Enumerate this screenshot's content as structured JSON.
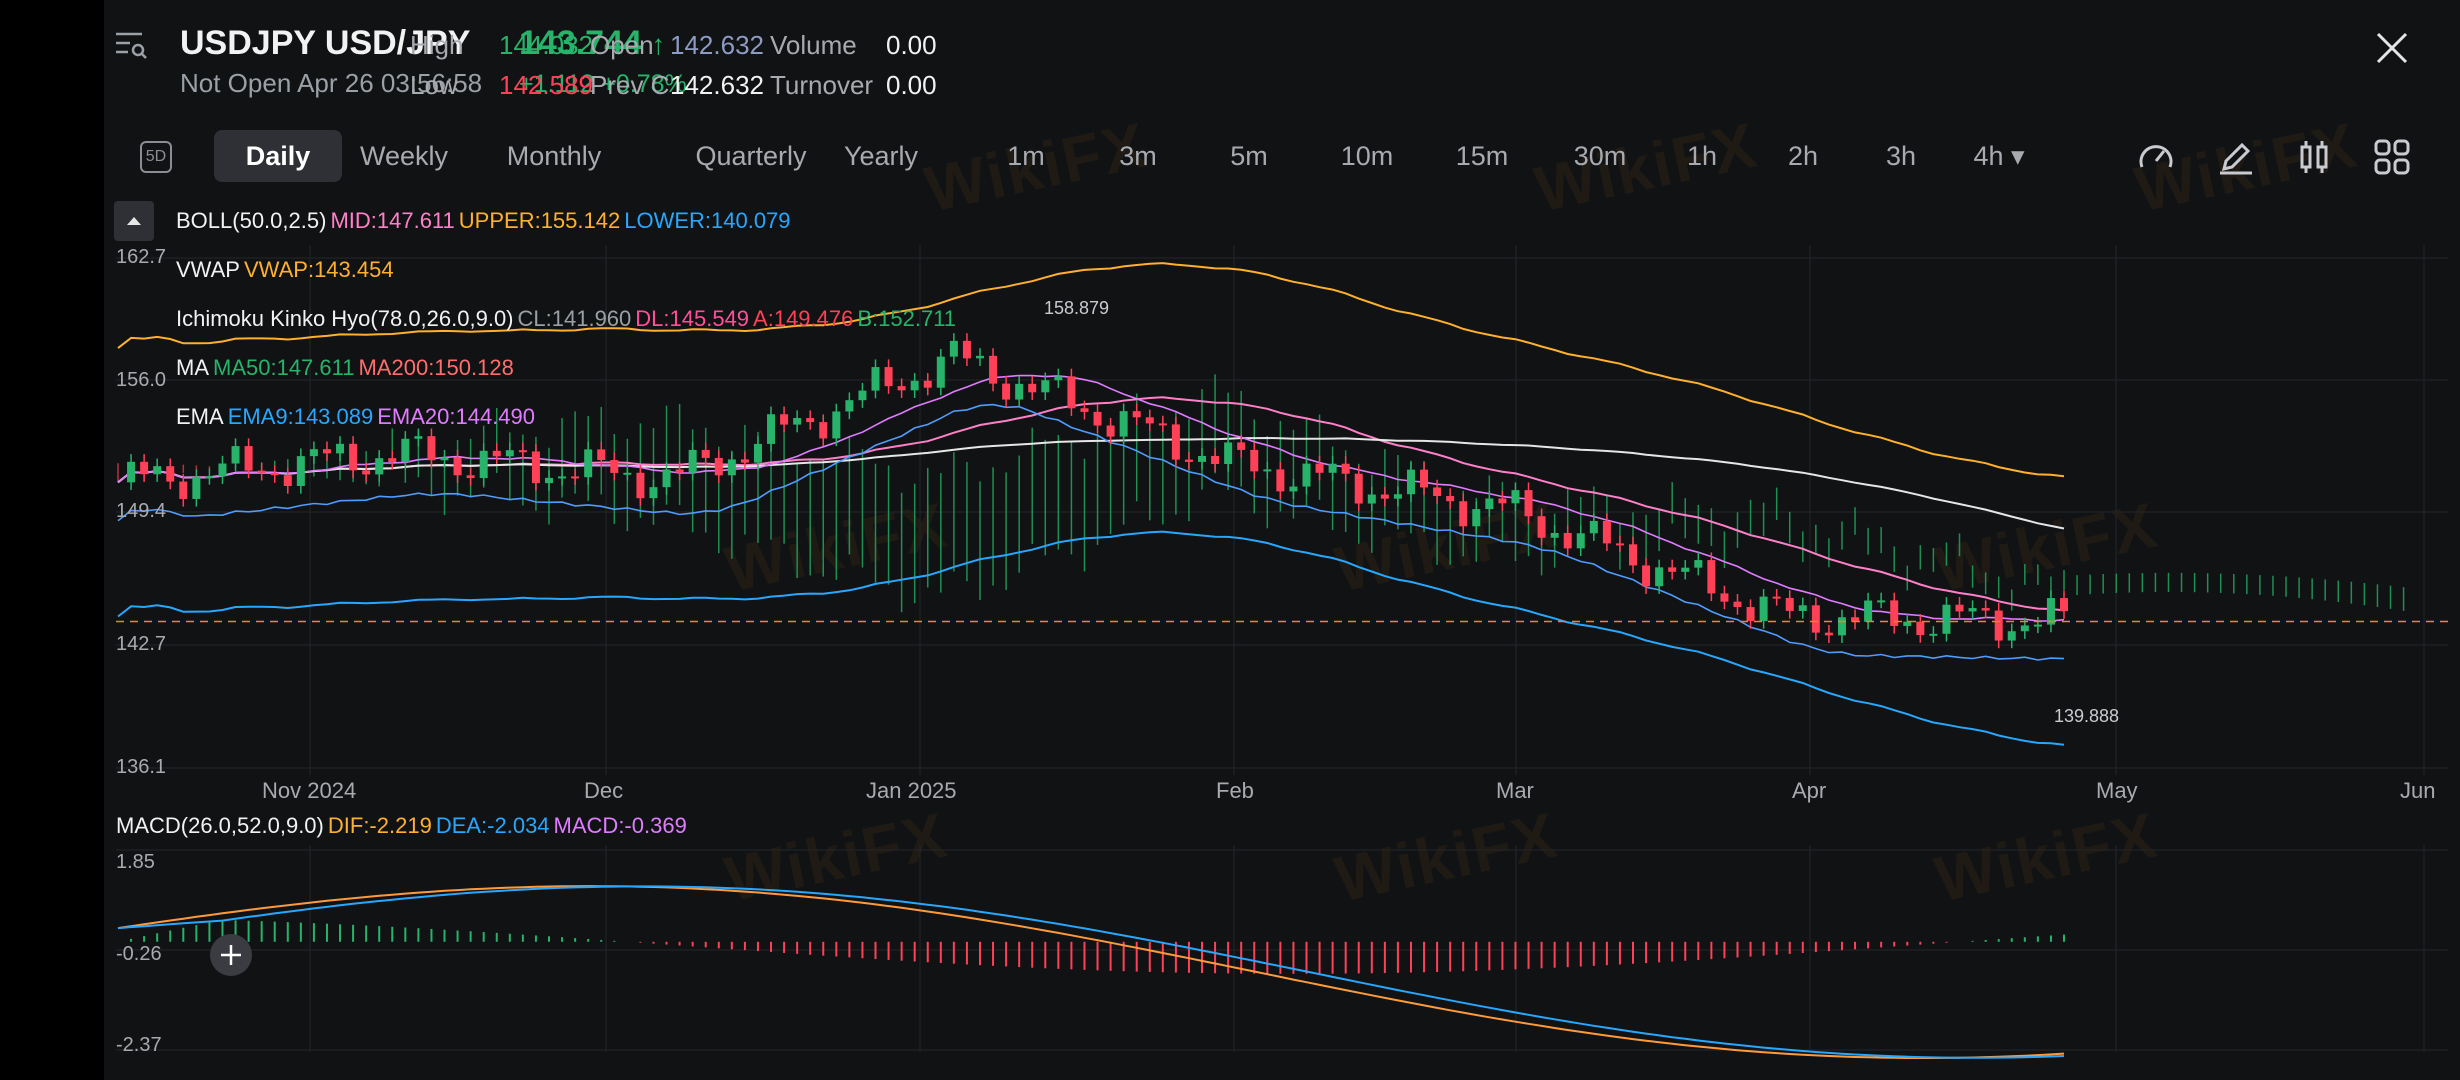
{
  "header": {
    "symbol": "USDJPY",
    "name": "USD/JPY",
    "status": "Not Open",
    "datetime": "Apr 26 03:56:58",
    "price": "143.744",
    "change": "+1.112",
    "change_pct": "+0.78%",
    "stats": [
      {
        "label": "High",
        "value": "144.032",
        "color": "#27b36a"
      },
      {
        "label": "Open",
        "value": "142.632",
        "color": "#8e9cc4"
      },
      {
        "label": "Volume",
        "value": "0.00",
        "color": "#f2f2f2"
      },
      {
        "label": "Low",
        "value": "142.589",
        "color": "#ff4057"
      },
      {
        "label": "Prev C",
        "value": "142.632",
        "color": "#f2f2f2"
      },
      {
        "label": "Turnover",
        "value": "0.00",
        "color": "#f2f2f2"
      }
    ]
  },
  "toolbar": {
    "left_icon": "5D",
    "periods": [
      "Daily",
      "Weekly",
      "Monthly",
      "Quarterly",
      "Yearly",
      "1m",
      "3m",
      "5m",
      "10m",
      "15m",
      "30m",
      "1h",
      "2h",
      "3h",
      "4h"
    ],
    "active_period": "Daily",
    "right_icons": [
      "gauge-icon",
      "pen-icon",
      "candle-type-icon",
      "grid-icon"
    ]
  },
  "indicators": {
    "boll": {
      "name": "BOLL(50.0,2.5)",
      "mid": "MID:147.611",
      "upper": "UPPER:155.142",
      "lower": "LOWER:140.079"
    },
    "vwap": {
      "name": "VWAP",
      "value": "VWAP:143.454"
    },
    "ichimoku": {
      "name": "Ichimoku Kinko Hyo(78.0,26.0,9.0)",
      "cl": "CL:141.960",
      "dl": "DL:145.549",
      "a": "A:149.476",
      "b": "B:152.711"
    },
    "ma": {
      "name": "MA",
      "ma50": "MA50:147.611",
      "ma200": "MA200:150.128"
    },
    "ema": {
      "name": "EMA",
      "ema9": "EMA9:143.089",
      "ema20": "EMA20:144.490"
    },
    "macd": {
      "name": "MACD(26.0,52.0,9.0)",
      "dif": "DIF:-2.219",
      "dea": "DEA:-2.034",
      "macd": "MACD:-0.369"
    }
  },
  "main_axis": {
    "y_ticks": [
      "162.7",
      "156.0",
      "149.4",
      "142.7",
      "136.1"
    ],
    "x_ticks": [
      "Nov 2024",
      "Dec",
      "Jan 2025",
      "Feb",
      "Mar",
      "Apr",
      "May",
      "Jun"
    ],
    "high_marker": "158.879",
    "low_marker": "139.888"
  },
  "macd_axis": {
    "y_ticks": [
      "1.85",
      "-0.26",
      "-2.37"
    ]
  },
  "watermark": "WikiFX",
  "chart_data": {
    "type": "candlestick",
    "ylim": [
      136.1,
      162.7
    ],
    "price_series": [
      {
        "date": "Oct 2024",
        "close": 151.0
      },
      {
        "date": "Nov 2024",
        "close": 152.5
      },
      {
        "date": "Dec",
        "close": 151.2
      },
      {
        "date": "Jan 2025",
        "close": 157.5
      },
      {
        "date": "Feb",
        "close": 152.0
      },
      {
        "date": "Mar",
        "close": 149.6
      },
      {
        "date": "Apr",
        "close": 144.0
      },
      {
        "date": "Apr 25",
        "close": 143.744
      }
    ],
    "high": 158.879,
    "low": 139.888,
    "last": 143.744,
    "macd_ylim": [
      -2.37,
      1.85
    ]
  }
}
